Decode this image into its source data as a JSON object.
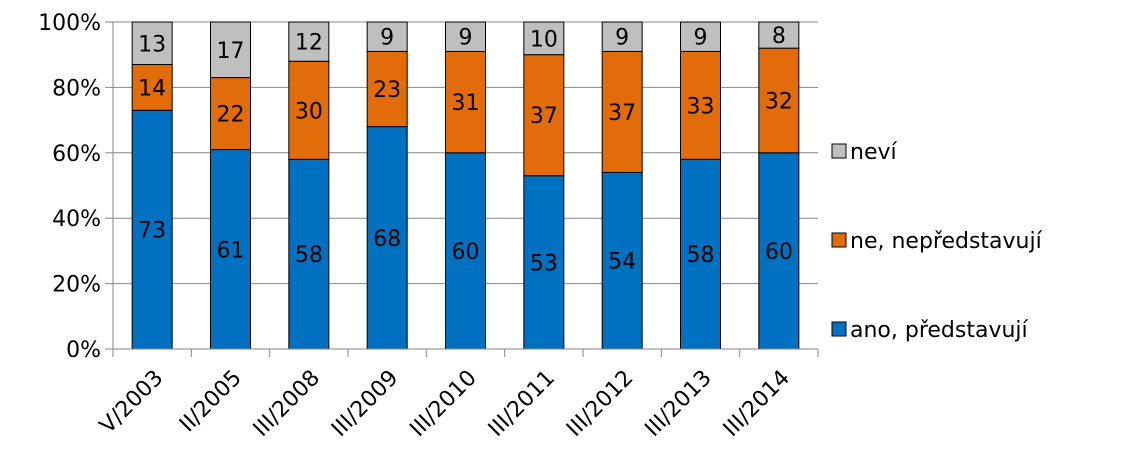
{
  "chart_data": {
    "type": "bar",
    "stacked": true,
    "percent_axis": true,
    "title": "",
    "xlabel": "",
    "ylabel": "",
    "ylim": [
      0,
      100
    ],
    "y_ticks": [
      "0%",
      "20%",
      "40%",
      "60%",
      "80%",
      "100%"
    ],
    "y_tick_values": [
      0,
      20,
      40,
      60,
      80,
      100
    ],
    "grid": true,
    "legend_position": "right",
    "categories": [
      "V/2003",
      "II/2005",
      "III/2008",
      "III/2009",
      "III/2010",
      "III/2011",
      "III/2012",
      "III/2013",
      "III/2014"
    ],
    "series": [
      {
        "name": "ano, představují",
        "color": "#0070C0",
        "values": [
          73,
          61,
          58,
          68,
          60,
          53,
          54,
          58,
          60
        ]
      },
      {
        "name": "ne, nepředstavují",
        "color": "#E36C0A",
        "values": [
          14,
          22,
          30,
          23,
          31,
          37,
          37,
          33,
          32
        ]
      },
      {
        "name": "neví",
        "color": "#BFBFBF",
        "values": [
          13,
          17,
          12,
          9,
          9,
          10,
          9,
          9,
          8
        ]
      }
    ],
    "legend_order": [
      "neví",
      "ne, nepředstavují",
      "ano, představují"
    ]
  }
}
